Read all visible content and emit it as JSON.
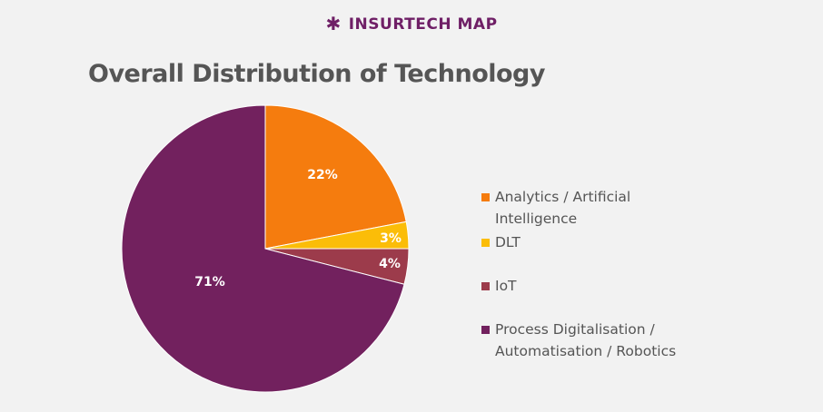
{
  "brand": {
    "icon": "asterisk-icon",
    "glyph": "✱",
    "name": "INSURTECH MAP"
  },
  "chart_data": {
    "type": "pie",
    "title": "Overall Distribution of Technology",
    "legend_position": "right",
    "slices": [
      {
        "label": "Analytics / Artificial Intelligence",
        "value": 22,
        "display": "22%",
        "color": "#f57c0e"
      },
      {
        "label": "DLT",
        "value": 3,
        "display": "3%",
        "color": "#fbbd08"
      },
      {
        "label": "IoT",
        "value": 4,
        "display": "4%",
        "color": "#9c3b4b"
      },
      {
        "label": "Process Digitalisation / Automatisation / Robotics",
        "value": 71,
        "display": "71%",
        "color": "#72215e"
      }
    ]
  }
}
